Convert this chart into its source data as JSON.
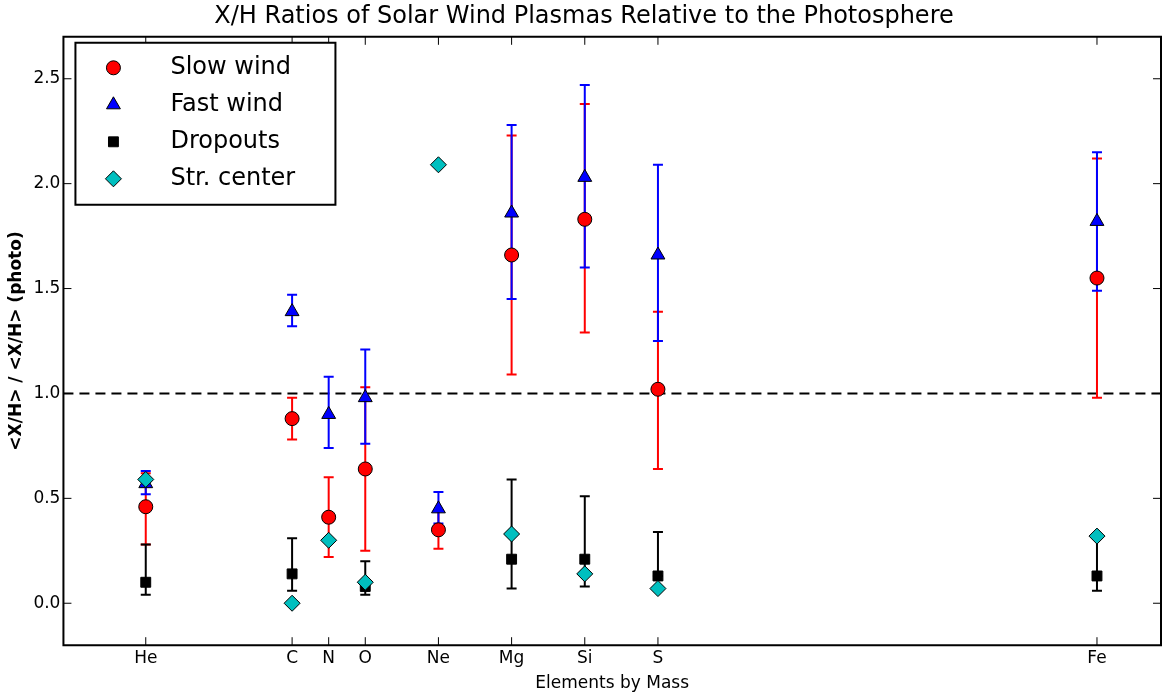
{
  "chart_data": {
    "type": "scatter",
    "title": "X/H Ratios of Solar Wind Plasmas Relative to the Photosphere",
    "xlabel": "Elements by Mass",
    "ylabel": "<X/H> / <X/H> (photo)",
    "categories": [
      null,
      null,
      null,
      null,
      "He",
      null,
      null,
      null,
      null,
      null,
      null,
      null,
      "C",
      null,
      "N",
      null,
      "O",
      null,
      null,
      null,
      "Ne",
      null,
      null,
      null,
      "Mg",
      null,
      null,
      null,
      "Si",
      null,
      null,
      null,
      "S",
      null,
      null,
      null,
      null,
      null,
      null,
      null,
      null,
      null,
      null,
      null,
      null,
      null,
      null,
      null,
      null,
      null,
      null,
      null,
      null,
      null,
      null,
      null,
      "Fe",
      null,
      null,
      null
    ],
    "ylim": [
      -0.2,
      2.7
    ],
    "yticks": [
      {
        "value": 0,
        "label": "0.0"
      },
      {
        "value": 0.5,
        "label": "0.5"
      },
      {
        "value": 1,
        "label": "1.0"
      },
      {
        "value": 1.5,
        "label": "1.5"
      },
      {
        "value": 2,
        "label": "2.0"
      },
      {
        "value": 2.5,
        "label": "2.5"
      }
    ],
    "grid": false,
    "legend": "top left",
    "ref_lines": [
      {
        "axis": "y",
        "value": 1,
        "color": "#000000",
        "line_style": "dashed"
      }
    ],
    "series": [
      {
        "name": "Slow wind",
        "color": "#ff0000",
        "marker": "circle",
        "values": [
          null,
          null,
          null,
          null,
          0.46,
          null,
          null,
          null,
          null,
          null,
          null,
          null,
          0.88,
          null,
          0.41,
          null,
          0.64,
          null,
          null,
          null,
          0.35,
          null,
          null,
          null,
          1.66,
          null,
          null,
          null,
          1.83,
          null,
          null,
          null,
          1.02,
          null,
          null,
          null,
          null,
          null,
          null,
          null,
          null,
          null,
          null,
          null,
          null,
          null,
          null,
          null,
          null,
          null,
          null,
          null,
          null,
          null,
          null,
          null,
          1.55,
          null,
          null,
          null
        ],
        "errors": [
          null,
          null,
          null,
          null,
          [
            0.28,
            0.62
          ],
          null,
          null,
          null,
          null,
          null,
          null,
          null,
          [
            0.78,
            0.98
          ],
          null,
          [
            0.22,
            0.6
          ],
          null,
          [
            0.25,
            1.03
          ],
          null,
          null,
          null,
          [
            0.26,
            0.44
          ],
          null,
          null,
          null,
          [
            1.09,
            2.23
          ],
          null,
          null,
          null,
          [
            1.29,
            2.38
          ],
          null,
          null,
          null,
          [
            0.64,
            1.39
          ],
          null,
          null,
          null,
          null,
          null,
          null,
          null,
          null,
          null,
          null,
          null,
          null,
          null,
          null,
          null,
          null,
          null,
          null,
          null,
          null,
          null,
          null,
          null,
          [
            0.98,
            2.12
          ],
          null,
          null,
          null
        ]
      },
      {
        "name": "Fast wind",
        "color": "#0000ff",
        "marker": "triangle",
        "values": [
          null,
          null,
          null,
          null,
          0.57,
          null,
          null,
          null,
          null,
          null,
          null,
          null,
          1.39,
          null,
          0.9,
          null,
          0.98,
          null,
          null,
          null,
          0.45,
          null,
          null,
          null,
          1.86,
          null,
          null,
          null,
          2.03,
          null,
          null,
          null,
          1.66,
          null,
          null,
          null,
          null,
          null,
          null,
          null,
          null,
          null,
          null,
          null,
          null,
          null,
          null,
          null,
          null,
          null,
          null,
          null,
          null,
          null,
          null,
          null,
          1.82,
          null,
          null,
          null
        ],
        "errors": [
          null,
          null,
          null,
          null,
          [
            0.52,
            0.63
          ],
          null,
          null,
          null,
          null,
          null,
          null,
          null,
          [
            1.32,
            1.47
          ],
          null,
          [
            0.74,
            1.08
          ],
          null,
          [
            0.76,
            1.21
          ],
          null,
          null,
          null,
          [
            0.38,
            0.53
          ],
          null,
          null,
          null,
          [
            1.45,
            2.28
          ],
          null,
          null,
          null,
          [
            1.6,
            2.47
          ],
          null,
          null,
          null,
          [
            1.25,
            2.09
          ],
          null,
          null,
          null,
          null,
          null,
          null,
          null,
          null,
          null,
          null,
          null,
          null,
          null,
          null,
          null,
          null,
          null,
          null,
          null,
          null,
          null,
          null,
          null,
          [
            1.49,
            2.15
          ],
          null,
          null,
          null
        ]
      },
      {
        "name": "Dropouts",
        "color": "#000000",
        "marker": "square",
        "values": [
          null,
          null,
          null,
          null,
          0.1,
          null,
          null,
          null,
          null,
          null,
          null,
          null,
          0.14,
          null,
          null,
          null,
          0.08,
          null,
          null,
          null,
          null,
          null,
          null,
          null,
          0.21,
          null,
          null,
          null,
          0.21,
          null,
          null,
          null,
          0.13,
          null,
          null,
          null,
          null,
          null,
          null,
          null,
          null,
          null,
          null,
          null,
          null,
          null,
          null,
          null,
          null,
          null,
          null,
          null,
          null,
          null,
          null,
          null,
          0.13,
          null,
          null,
          null
        ],
        "errors": [
          null,
          null,
          null,
          null,
          [
            0.04,
            0.28
          ],
          null,
          null,
          null,
          null,
          null,
          null,
          null,
          [
            0.06,
            0.31
          ],
          null,
          null,
          null,
          [
            0.04,
            0.2
          ],
          null,
          null,
          null,
          null,
          null,
          null,
          null,
          [
            0.07,
            0.59
          ],
          null,
          null,
          null,
          [
            0.08,
            0.51
          ],
          null,
          null,
          null,
          [
            0.13,
            0.34
          ],
          null,
          null,
          null,
          null,
          null,
          null,
          null,
          null,
          null,
          null,
          null,
          null,
          null,
          null,
          null,
          null,
          null,
          null,
          null,
          null,
          null,
          null,
          null,
          [
            0.06,
            0.31
          ],
          null,
          null,
          null
        ]
      },
      {
        "name": "Str. center",
        "color": "#00bfbf",
        "marker": "diamond",
        "values": [
          null,
          null,
          null,
          null,
          0.59,
          null,
          null,
          null,
          null,
          null,
          null,
          null,
          0.0,
          null,
          0.3,
          null,
          0.1,
          null,
          null,
          null,
          2.09,
          null,
          null,
          null,
          0.33,
          null,
          null,
          null,
          0.14,
          null,
          null,
          null,
          0.07,
          null,
          null,
          null,
          null,
          null,
          null,
          null,
          null,
          null,
          null,
          null,
          null,
          null,
          null,
          null,
          null,
          null,
          null,
          null,
          null,
          null,
          null,
          null,
          0.32,
          null,
          null,
          null
        ]
      }
    ]
  }
}
